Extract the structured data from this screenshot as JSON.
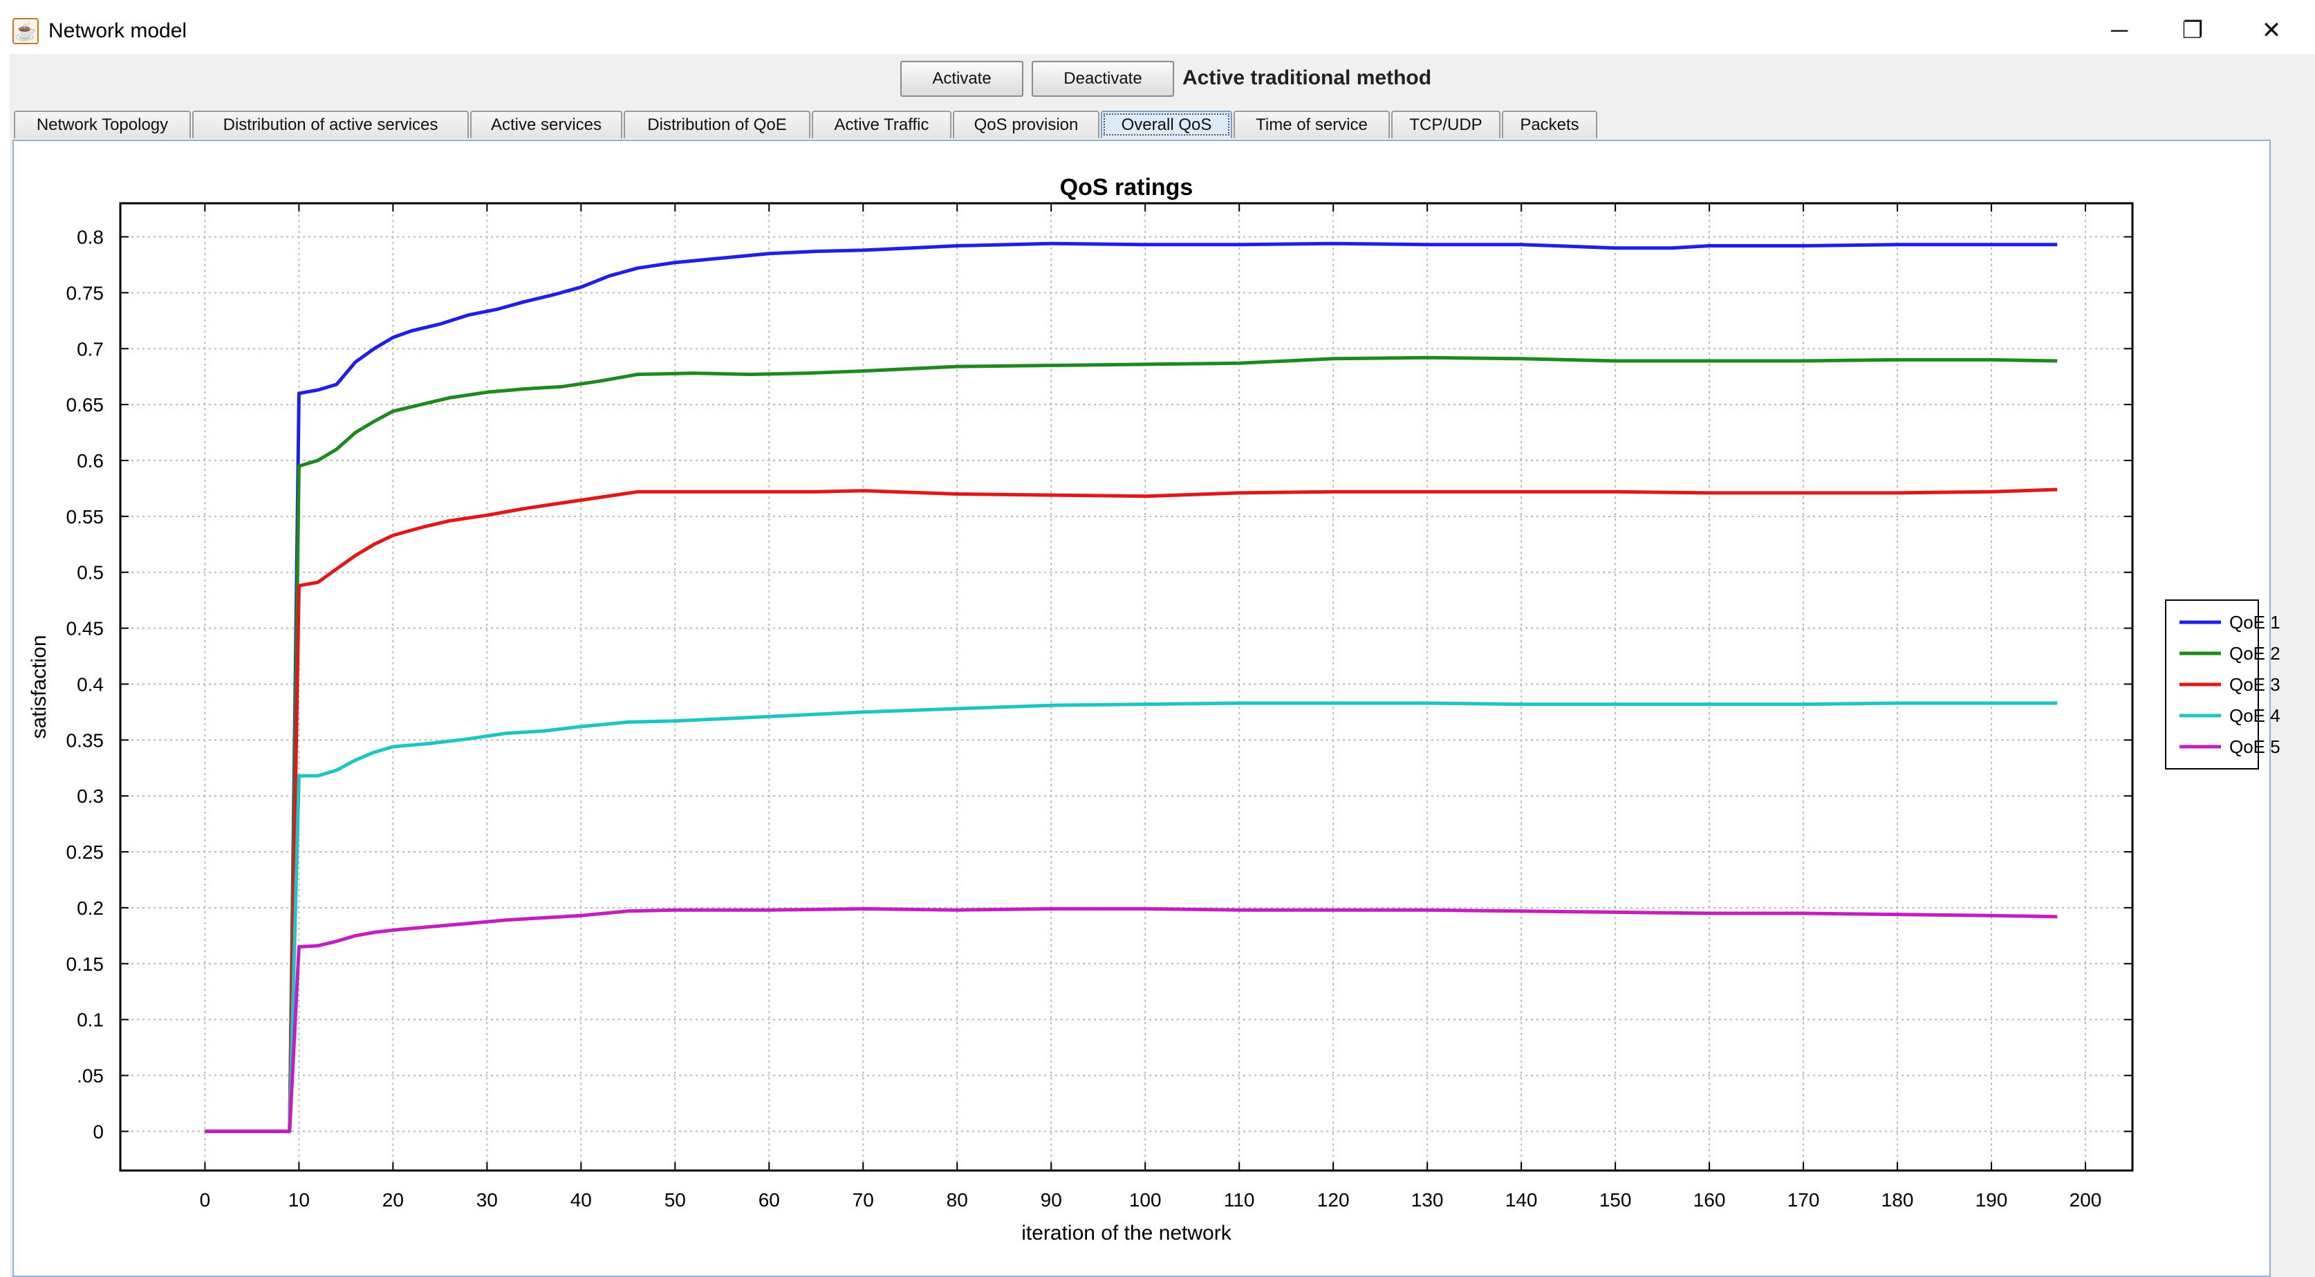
{
  "window": {
    "title": "Network model"
  },
  "toolbar": {
    "activate_label": "Activate",
    "deactivate_label": "Deactivate",
    "method_label": "Active traditional method"
  },
  "tabs": [
    {
      "label": "Network Topology"
    },
    {
      "label": "Distribution of active services"
    },
    {
      "label": "Active services"
    },
    {
      "label": "Distribution of QoE"
    },
    {
      "label": "Active Traffic"
    },
    {
      "label": "QoS provision"
    },
    {
      "label": "Overall QoS"
    },
    {
      "label": "Time of service"
    },
    {
      "label": "TCP/UDP"
    },
    {
      "label": "Packets"
    }
  ],
  "active_tab": "Overall QoS",
  "chart_data": {
    "type": "line",
    "title": "QoS ratings",
    "xlabel": "iteration of the network",
    "ylabel": "satisfaction",
    "xlim": [
      -9,
      205
    ],
    "ylim": [
      -0.035,
      0.83
    ],
    "xticks": [
      0,
      10,
      20,
      30,
      40,
      50,
      60,
      70,
      80,
      90,
      100,
      110,
      120,
      130,
      140,
      150,
      160,
      170,
      180,
      190,
      200
    ],
    "yticks": [
      {
        "v": 0.8,
        "label": "0.8"
      },
      {
        "v": 0.75,
        "label": "0.75"
      },
      {
        "v": 0.7,
        "label": "0.7"
      },
      {
        "v": 0.65,
        "label": "0.65"
      },
      {
        "v": 0.6,
        "label": "0.6"
      },
      {
        "v": 0.55,
        "label": "0.55"
      },
      {
        "v": 0.5,
        "label": "0.5"
      },
      {
        "v": 0.45,
        "label": "0.45"
      },
      {
        "v": 0.4,
        "label": "0.4"
      },
      {
        "v": 0.35,
        "label": "0.35"
      },
      {
        "v": 0.3,
        "label": "0.3"
      },
      {
        "v": 0.25,
        "label": "0.25"
      },
      {
        "v": 0.2,
        "label": "0.2"
      },
      {
        "v": 0.15,
        "label": "0.15"
      },
      {
        "v": 0.1,
        "label": "0.1"
      },
      {
        "v": 0.05,
        "label": ".05"
      },
      {
        "v": 0,
        "label": "0"
      }
    ],
    "grid": true,
    "legend_position": "right",
    "series": [
      {
        "name": "QoE 1",
        "color": "#1f1fe6",
        "points": [
          [
            0,
            0
          ],
          [
            9,
            0
          ],
          [
            10,
            0.66
          ],
          [
            12,
            0.663
          ],
          [
            14,
            0.668
          ],
          [
            16,
            0.688
          ],
          [
            18,
            0.7
          ],
          [
            20,
            0.71
          ],
          [
            22,
            0.716
          ],
          [
            25,
            0.722
          ],
          [
            28,
            0.73
          ],
          [
            31,
            0.735
          ],
          [
            34,
            0.742
          ],
          [
            37,
            0.748
          ],
          [
            40,
            0.755
          ],
          [
            43,
            0.765
          ],
          [
            46,
            0.772
          ],
          [
            50,
            0.777
          ],
          [
            55,
            0.781
          ],
          [
            60,
            0.785
          ],
          [
            65,
            0.787
          ],
          [
            70,
            0.788
          ],
          [
            75,
            0.79
          ],
          [
            80,
            0.792
          ],
          [
            90,
            0.794
          ],
          [
            100,
            0.793
          ],
          [
            110,
            0.793
          ],
          [
            120,
            0.794
          ],
          [
            130,
            0.793
          ],
          [
            140,
            0.793
          ],
          [
            150,
            0.79
          ],
          [
            156,
            0.79
          ],
          [
            160,
            0.792
          ],
          [
            170,
            0.792
          ],
          [
            180,
            0.793
          ],
          [
            197,
            0.793
          ]
        ]
      },
      {
        "name": "QoE 2",
        "color": "#1e8a1e",
        "points": [
          [
            0,
            0
          ],
          [
            9,
            0
          ],
          [
            10,
            0.595
          ],
          [
            12,
            0.6
          ],
          [
            14,
            0.61
          ],
          [
            16,
            0.625
          ],
          [
            18,
            0.635
          ],
          [
            20,
            0.644
          ],
          [
            23,
            0.65
          ],
          [
            26,
            0.656
          ],
          [
            30,
            0.661
          ],
          [
            34,
            0.664
          ],
          [
            38,
            0.666
          ],
          [
            42,
            0.671
          ],
          [
            46,
            0.677
          ],
          [
            52,
            0.678
          ],
          [
            58,
            0.677
          ],
          [
            64,
            0.678
          ],
          [
            70,
            0.68
          ],
          [
            80,
            0.684
          ],
          [
            90,
            0.685
          ],
          [
            100,
            0.686
          ],
          [
            110,
            0.687
          ],
          [
            120,
            0.691
          ],
          [
            130,
            0.692
          ],
          [
            140,
            0.691
          ],
          [
            150,
            0.689
          ],
          [
            160,
            0.689
          ],
          [
            170,
            0.689
          ],
          [
            180,
            0.69
          ],
          [
            190,
            0.69
          ],
          [
            197,
            0.689
          ]
        ]
      },
      {
        "name": "QoE 3",
        "color": "#e01818",
        "points": [
          [
            0,
            0
          ],
          [
            9,
            0
          ],
          [
            10,
            0.488
          ],
          [
            12,
            0.491
          ],
          [
            14,
            0.503
          ],
          [
            16,
            0.515
          ],
          [
            18,
            0.525
          ],
          [
            20,
            0.533
          ],
          [
            23,
            0.54
          ],
          [
            26,
            0.546
          ],
          [
            30,
            0.551
          ],
          [
            34,
            0.557
          ],
          [
            38,
            0.562
          ],
          [
            42,
            0.567
          ],
          [
            46,
            0.572
          ],
          [
            55,
            0.572
          ],
          [
            65,
            0.572
          ],
          [
            70,
            0.573
          ],
          [
            80,
            0.57
          ],
          [
            90,
            0.569
          ],
          [
            100,
            0.568
          ],
          [
            110,
            0.571
          ],
          [
            120,
            0.572
          ],
          [
            130,
            0.572
          ],
          [
            140,
            0.572
          ],
          [
            150,
            0.572
          ],
          [
            160,
            0.571
          ],
          [
            170,
            0.571
          ],
          [
            180,
            0.571
          ],
          [
            190,
            0.572
          ],
          [
            197,
            0.574
          ]
        ]
      },
      {
        "name": "QoE 4",
        "color": "#1fc4c4",
        "points": [
          [
            0,
            0
          ],
          [
            9,
            0
          ],
          [
            10,
            0.318
          ],
          [
            12,
            0.318
          ],
          [
            14,
            0.323
          ],
          [
            16,
            0.332
          ],
          [
            18,
            0.339
          ],
          [
            20,
            0.344
          ],
          [
            24,
            0.347
          ],
          [
            28,
            0.351
          ],
          [
            32,
            0.356
          ],
          [
            36,
            0.358
          ],
          [
            40,
            0.362
          ],
          [
            45,
            0.366
          ],
          [
            50,
            0.367
          ],
          [
            55,
            0.369
          ],
          [
            60,
            0.371
          ],
          [
            65,
            0.373
          ],
          [
            70,
            0.375
          ],
          [
            80,
            0.378
          ],
          [
            90,
            0.381
          ],
          [
            100,
            0.382
          ],
          [
            110,
            0.383
          ],
          [
            120,
            0.383
          ],
          [
            130,
            0.383
          ],
          [
            140,
            0.382
          ],
          [
            150,
            0.382
          ],
          [
            160,
            0.382
          ],
          [
            170,
            0.382
          ],
          [
            180,
            0.383
          ],
          [
            197,
            0.383
          ]
        ]
      },
      {
        "name": "QoE 5",
        "color": "#c21ec2",
        "points": [
          [
            0,
            0
          ],
          [
            9,
            0
          ],
          [
            10,
            0.165
          ],
          [
            12,
            0.166
          ],
          [
            14,
            0.17
          ],
          [
            16,
            0.175
          ],
          [
            18,
            0.178
          ],
          [
            20,
            0.18
          ],
          [
            24,
            0.183
          ],
          [
            28,
            0.186
          ],
          [
            32,
            0.189
          ],
          [
            36,
            0.191
          ],
          [
            40,
            0.193
          ],
          [
            45,
            0.197
          ],
          [
            50,
            0.198
          ],
          [
            60,
            0.198
          ],
          [
            70,
            0.199
          ],
          [
            80,
            0.198
          ],
          [
            90,
            0.199
          ],
          [
            100,
            0.199
          ],
          [
            110,
            0.198
          ],
          [
            120,
            0.198
          ],
          [
            130,
            0.198
          ],
          [
            140,
            0.197
          ],
          [
            150,
            0.196
          ],
          [
            160,
            0.195
          ],
          [
            170,
            0.195
          ],
          [
            180,
            0.194
          ],
          [
            190,
            0.193
          ],
          [
            197,
            0.192
          ]
        ]
      }
    ]
  }
}
